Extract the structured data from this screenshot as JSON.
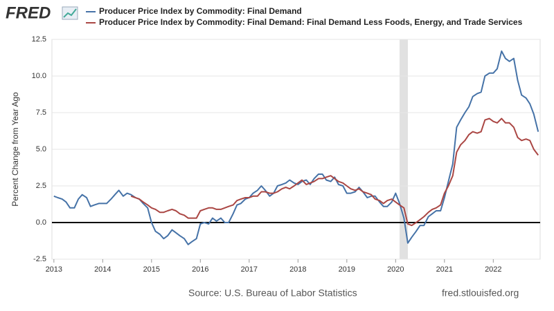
{
  "logo": "FRED",
  "chart_data": {
    "type": "line",
    "series": [
      {
        "name": "Producer Price Index by Commodity: Final Demand",
        "color": "#4572a7",
        "values": [
          1.8,
          1.7,
          1.6,
          1.4,
          1.0,
          1.0,
          1.6,
          1.9,
          1.7,
          1.1,
          1.2,
          1.3,
          1.3,
          1.3,
          1.6,
          1.9,
          2.2,
          1.8,
          2.0,
          1.9,
          1.7,
          1.6,
          1.3,
          1.0,
          0.0,
          -0.6,
          -0.8,
          -1.1,
          -0.9,
          -0.5,
          -0.7,
          -0.9,
          -1.1,
          -1.5,
          -1.3,
          -1.1,
          -0.1,
          0.0,
          -0.1,
          0.3,
          0.1,
          0.3,
          0.0,
          0.0,
          0.6,
          1.2,
          1.3,
          1.6,
          1.7,
          2.0,
          2.2,
          2.5,
          2.2,
          1.8,
          2.0,
          2.5,
          2.6,
          2.7,
          2.9,
          2.7,
          2.6,
          2.8,
          2.9,
          2.6,
          3.0,
          3.3,
          3.3,
          2.9,
          2.8,
          3.1,
          2.6,
          2.5,
          2.0,
          2.0,
          2.1,
          2.4,
          2.1,
          1.7,
          1.8,
          1.8,
          1.4,
          1.1,
          1.1,
          1.4,
          2.0,
          1.3,
          0.3,
          -1.4,
          -1.0,
          -0.6,
          -0.2,
          -0.2,
          0.4,
          0.6,
          0.8,
          0.8,
          1.7,
          2.8,
          4.0,
          6.5,
          7.0,
          7.5,
          7.9,
          8.6,
          8.8,
          8.9,
          10.0,
          10.2,
          10.2,
          10.5,
          11.7,
          11.2,
          11.0,
          11.2,
          9.7,
          8.7,
          8.5,
          8.1,
          7.4,
          6.2
        ]
      },
      {
        "name": "Producer Price Index by Commodity: Final Demand: Final Demand Less Foods, Energy, and Trade Services",
        "color": "#aa4643",
        "values": [
          null,
          null,
          null,
          null,
          null,
          null,
          null,
          null,
          null,
          null,
          null,
          null,
          null,
          null,
          null,
          null,
          null,
          null,
          null,
          1.8,
          1.7,
          1.6,
          1.4,
          1.2,
          1.0,
          0.9,
          0.7,
          0.7,
          0.8,
          0.9,
          0.8,
          0.6,
          0.5,
          0.3,
          0.3,
          0.3,
          0.8,
          0.9,
          1.0,
          1.0,
          0.9,
          0.9,
          1.0,
          1.1,
          1.2,
          1.5,
          1.6,
          1.7,
          1.7,
          1.8,
          1.8,
          2.1,
          2.1,
          2.0,
          2.0,
          2.1,
          2.3,
          2.4,
          2.3,
          2.5,
          2.7,
          2.9,
          2.6,
          2.7,
          2.8,
          3.0,
          3.0,
          3.1,
          3.2,
          3.0,
          2.8,
          2.7,
          2.5,
          2.3,
          2.2,
          2.3,
          2.1,
          2.0,
          1.9,
          1.6,
          1.5,
          1.3,
          1.5,
          1.6,
          1.4,
          1.2,
          1.0,
          -0.1,
          -0.2,
          0.0,
          0.2,
          0.4,
          0.7,
          0.9,
          1.0,
          1.2,
          2.0,
          2.5,
          3.2,
          4.8,
          5.3,
          5.6,
          6.0,
          6.2,
          6.1,
          6.2,
          7.0,
          7.1,
          6.9,
          6.8,
          7.1,
          6.8,
          6.8,
          6.5,
          5.8,
          5.6,
          5.7,
          5.6,
          5.0,
          4.6
        ]
      }
    ],
    "x": [
      2013,
      2013.08,
      2013.17,
      2013.25,
      2013.33,
      2013.42,
      2013.5,
      2013.58,
      2013.67,
      2013.75,
      2013.83,
      2013.92,
      2014,
      2014.08,
      2014.17,
      2014.25,
      2014.33,
      2014.42,
      2014.5,
      2014.58,
      2014.67,
      2014.75,
      2014.83,
      2014.92,
      2015,
      2015.08,
      2015.17,
      2015.25,
      2015.33,
      2015.42,
      2015.5,
      2015.58,
      2015.67,
      2015.75,
      2015.83,
      2015.92,
      2016,
      2016.08,
      2016.17,
      2016.25,
      2016.33,
      2016.42,
      2016.5,
      2016.58,
      2016.67,
      2016.75,
      2016.83,
      2016.92,
      2017,
      2017.08,
      2017.17,
      2017.25,
      2017.33,
      2017.42,
      2017.5,
      2017.58,
      2017.67,
      2017.75,
      2017.83,
      2017.92,
      2018,
      2018.08,
      2018.17,
      2018.25,
      2018.33,
      2018.42,
      2018.5,
      2018.58,
      2018.67,
      2018.75,
      2018.83,
      2018.92,
      2019,
      2019.08,
      2019.17,
      2019.25,
      2019.33,
      2019.42,
      2019.5,
      2019.58,
      2019.67,
      2019.75,
      2019.83,
      2019.92,
      2020,
      2020.08,
      2020.17,
      2020.25,
      2020.33,
      2020.42,
      2020.5,
      2020.58,
      2020.67,
      2020.75,
      2020.83,
      2020.92,
      2021,
      2021.08,
      2021.17,
      2021.25,
      2021.33,
      2021.42,
      2021.5,
      2021.58,
      2021.67,
      2021.75,
      2021.83,
      2021.92,
      2022,
      2022.08,
      2022.17,
      2022.25,
      2022.33,
      2022.42,
      2022.5,
      2022.58,
      2022.67,
      2022.75,
      2022.83,
      2022.92
    ],
    "xlim": [
      2012.96,
      2022.96
    ],
    "xticks": [
      2013,
      2014,
      2015,
      2016,
      2017,
      2018,
      2019,
      2020,
      2021,
      2022
    ],
    "ylim": [
      -2.5,
      12.5
    ],
    "yticks": [
      -2.5,
      {
        "value": 0,
        "label": "0.0"
      },
      2.5,
      {
        "value": 5,
        "label": "5.0"
      },
      7.5,
      {
        "value": 10,
        "label": "10.0"
      },
      12.5
    ],
    "ylabel": "Percent Change from Year Ago",
    "recessions": [
      [
        2020.08,
        2020.25
      ]
    ],
    "grid": true,
    "source": "Source: U.S. Bureau of Labor Statistics",
    "site": "fred.stlouisfed.org"
  }
}
